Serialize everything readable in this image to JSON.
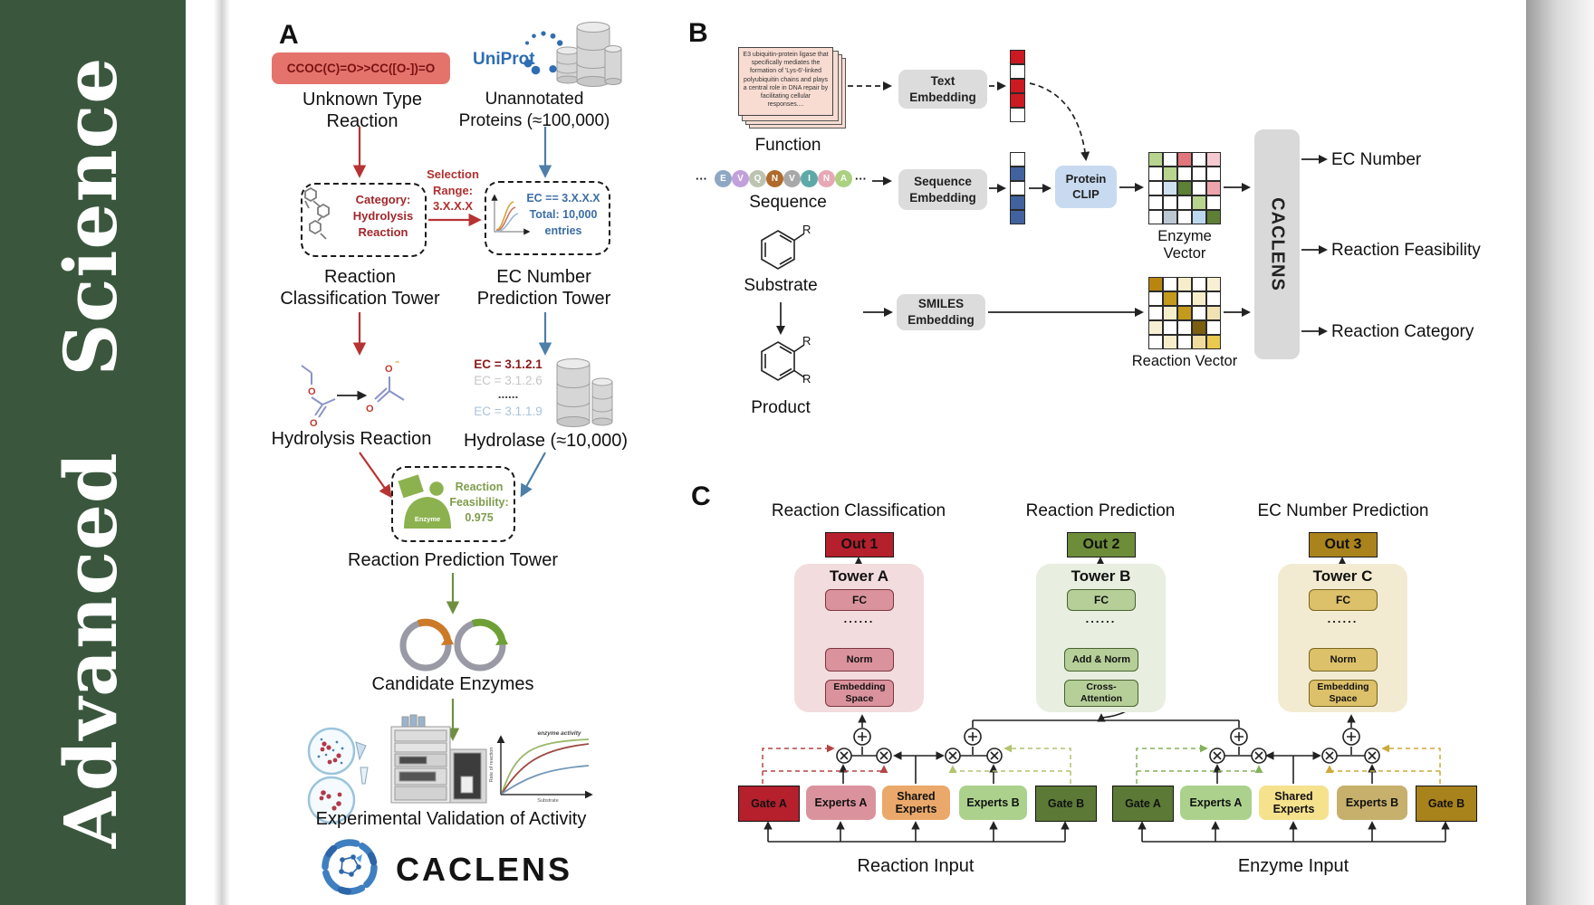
{
  "sidebar": {
    "journal": "Advanced Science",
    "bg": "#3a573d"
  },
  "panelA": {
    "label": "A",
    "smiles": "CCOC(C)=O>>CC([O-])=O",
    "unknown": "Unknown Type\nReaction",
    "uniprot": "UniProt",
    "unannotated": "Unannotated\nProteins (≈100,000)",
    "selection": "Selection\nRange:\n3.X.X.X",
    "category_box": "Category:\nHydrolysis\nReaction",
    "ec_box": "EC == 3.X.X.X\nTotal: 10,000\nentries",
    "tower1": "Reaction\nClassification Tower",
    "tower2": "EC Number\nPrediction Tower",
    "ec_list": [
      "EC = 3.1.2.1",
      "EC = 3.1.2.6",
      "......",
      "EC = 3.1.1.9"
    ],
    "hydrolysis": "Hydrolysis Reaction",
    "hydrolase": "Hydrolase (≈10,000)",
    "enzyme": "Enzyme",
    "feasibility": "Reaction\nFeasibility:\n0.975",
    "tower3": "Reaction Prediction Tower",
    "candidate": "Candidate Enzymes",
    "validation": "Experimental Validation of Activity",
    "brand": "CACLENS",
    "activity_chart": {
      "title": "enzyme activity",
      "ylabel": "Rate of reaction",
      "xlabel": "Substrate"
    }
  },
  "panelB": {
    "label": "B",
    "function_card": "E3 ubiquitin-protein ligase that specifically mediates the formation of 'Lys-6'-linked polyubiquitin chains and plays a central role in DNA repair by facilitating cellular responses....",
    "function": "Function",
    "ellipsis": "···",
    "residues": [
      {
        "t": "E",
        "c": "#8ea7c4"
      },
      {
        "t": "V",
        "c": "#c2a0dc"
      },
      {
        "t": "Q",
        "c": "#bcc3b0"
      },
      {
        "t": "N",
        "c": "#b06a2c"
      },
      {
        "t": "V",
        "c": "#a8a8a8"
      },
      {
        "t": "I",
        "c": "#5fa8a8"
      },
      {
        "t": "N",
        "c": "#e6a8b4"
      },
      {
        "t": "A",
        "c": "#abd181"
      }
    ],
    "sequence": "Sequence",
    "substrate": "Substrate",
    "product": "Product",
    "r": "R",
    "text_embedding": "Text\nEmbedding",
    "sequence_embedding": "Sequence\nEmbedding",
    "smiles_embedding": "SMILES\nEmbedding",
    "protein_clip": "Protein\nCLIP",
    "text_vector": [
      "#cc1a22",
      "#ffffff",
      "#cc1a22",
      "#cc1a22",
      "#ffffff"
    ],
    "seq_vector": [
      "#ffffff",
      "#41629e",
      "#ffffff",
      "#41629e",
      "#41629e"
    ],
    "enzyme_grid": [
      "#b8d48e",
      "#ffffff",
      "#e1767c",
      "#ffffff",
      "#f4c9cf",
      "#ffffff",
      "#b8d48e",
      "#ffffff",
      "#ffffff",
      "#ffffff",
      "#ffffff",
      "#cfe0f0",
      "#5d7f36",
      "#ffffff",
      "#eea4ac",
      "#ffffff",
      "#ffffff",
      "#ffffff",
      "#b8d48e",
      "#ffffff",
      "#ffffff",
      "#bcc8d2",
      "#ffffff",
      "#bcd8ee",
      "#5d7f36"
    ],
    "reaction_grid": [
      "#b8860f",
      "#ffffff",
      "#f6eecb",
      "#ffffff",
      "#f8f0d4",
      "#ffffff",
      "#c39a1b",
      "#ffffff",
      "#f6eecb",
      "#ffffff",
      "#ffffff",
      "#f6eecb",
      "#c39a1b",
      "#ffffff",
      "#f0e2b2",
      "#f8f0d4",
      "#ffffff",
      "#ffffff",
      "#7c5e10",
      "#ffffff",
      "#ffffff",
      "#f6eecb",
      "#ffffff",
      "#f0dc9c",
      "#e9c94e"
    ],
    "enzyme_vector": "Enzyme Vector",
    "reaction_vector": "Reaction Vector",
    "caclens": "CACLENS",
    "outputs": [
      "EC Number",
      "Reaction Feasibility",
      "Reaction Category"
    ]
  },
  "panelC": {
    "label": "C",
    "columns": [
      {
        "heading": "Reaction Classification",
        "out": "Out 1",
        "tower": "Tower A",
        "fc": "FC",
        "dots": "......",
        "mid": "Norm",
        "base": "Embedding\nSpace"
      },
      {
        "heading": "Reaction Prediction",
        "out": "Out 2",
        "tower": "Tower B",
        "fc": "FC",
        "dots": "......",
        "mid": "Add & Norm",
        "base": "Cross-\nAttention"
      },
      {
        "heading": "EC Number Prediction",
        "out": "Out 3",
        "tower": "Tower C",
        "fc": "FC",
        "dots": "......",
        "mid": "Norm",
        "base": "Embedding\nSpace"
      }
    ],
    "groups": [
      {
        "label": "Reaction Input",
        "boxes": [
          "Gate A",
          "Experts A",
          "Shared\nExperts",
          "Experts B",
          "Gate B"
        ]
      },
      {
        "label": "Enzyme Input",
        "boxes": [
          "Gate A",
          "Experts A",
          "Shared\nExperts",
          "Experts B",
          "Gate B"
        ]
      }
    ]
  }
}
